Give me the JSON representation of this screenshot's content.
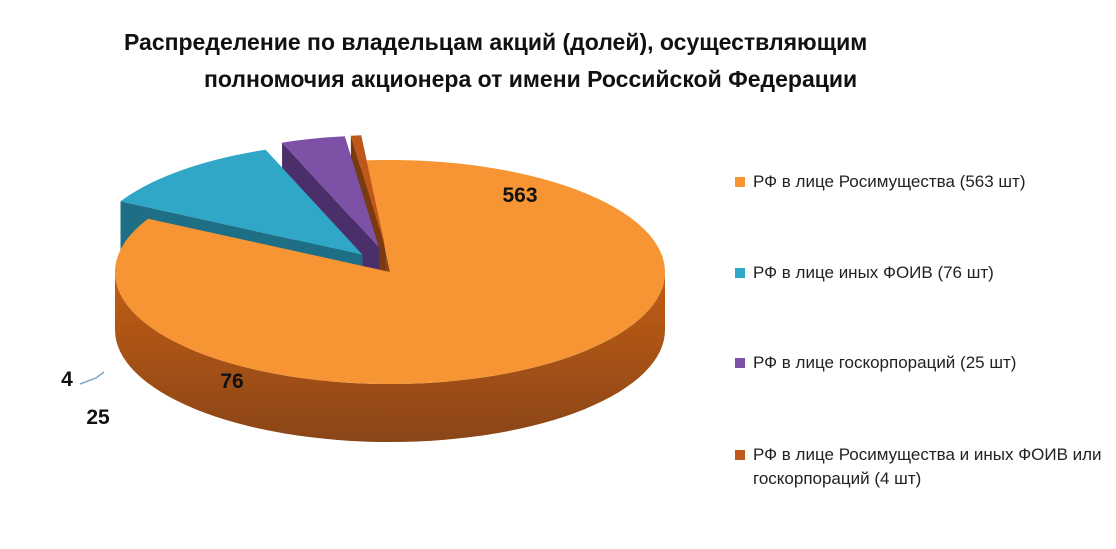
{
  "title": {
    "line1": "Распределение по владельцам акций (долей), осуществляющим",
    "line2": "полномочия акционера от имени Российской Федерации"
  },
  "chart_data": {
    "type": "pie",
    "categories": [
      "РФ в лице Росимущества (563 шт)",
      "РФ в лице иных ФОИВ (76 шт)",
      "РФ в лице госкорпораций (25 шт)",
      "РФ в лице Росимущества и иных ФОИВ или госкорпораций (4 шт)"
    ],
    "values": [
      563,
      76,
      25,
      4
    ],
    "data_labels": [
      "563",
      "76",
      "25",
      "4"
    ],
    "colors": [
      "#F79433",
      "#31A7C8",
      "#7D52A6",
      "#C0571A"
    ],
    "legend_position": "right",
    "style": "3d-exploded"
  }
}
